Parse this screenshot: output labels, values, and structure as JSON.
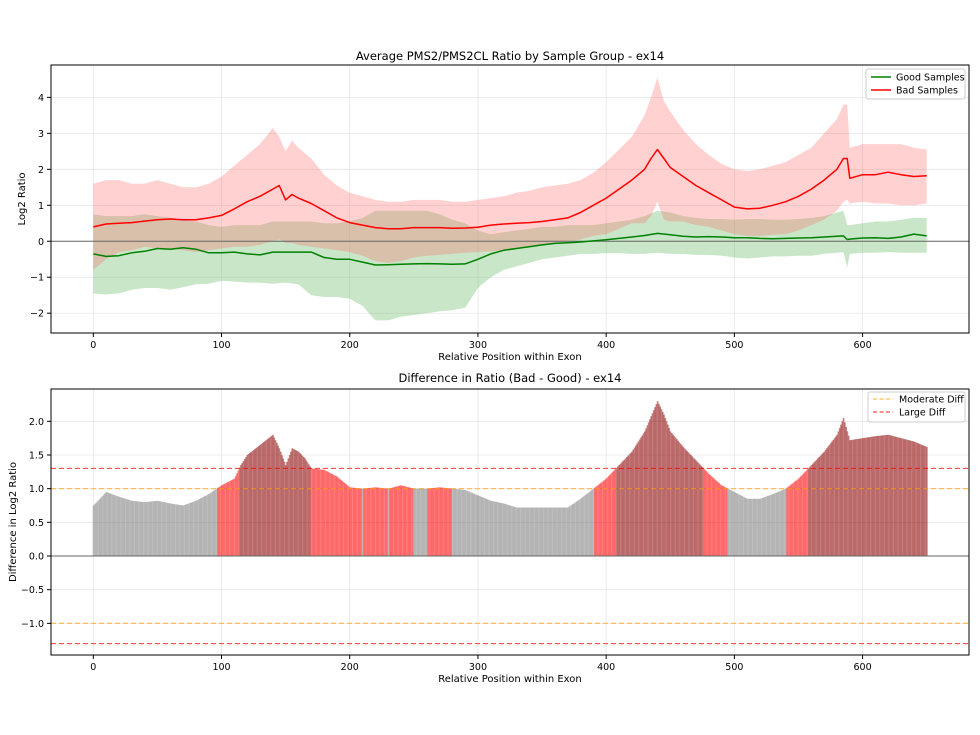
{
  "chart_data": [
    {
      "type": "line",
      "title": "Average PMS2/PMS2CL Ratio by Sample Group - ex14",
      "xlabel": "Relative Position within Exon",
      "ylabel": "Log2 Ratio",
      "xlim": [
        -33,
        683
      ],
      "ylim": [
        -2.55,
        4.9
      ],
      "xticks": [
        0,
        100,
        200,
        300,
        400,
        500,
        600
      ],
      "yticks": [
        -2,
        -1,
        0,
        1,
        2,
        3,
        4
      ],
      "grid": true,
      "legend_position": "top-right",
      "reference_line": 0,
      "series": [
        {
          "name": "Good Samples",
          "color": "#008000",
          "band_color": "#4daf4a",
          "x": [
            0,
            10,
            20,
            30,
            40,
            50,
            60,
            70,
            80,
            90,
            100,
            110,
            120,
            130,
            140,
            150,
            160,
            170,
            180,
            190,
            200,
            210,
            220,
            230,
            240,
            250,
            260,
            270,
            280,
            290,
            300,
            310,
            320,
            330,
            340,
            350,
            360,
            370,
            380,
            390,
            400,
            410,
            420,
            430,
            440,
            450,
            460,
            470,
            480,
            490,
            500,
            510,
            520,
            530,
            540,
            550,
            560,
            570,
            580,
            585,
            588,
            590,
            600,
            610,
            620,
            630,
            640,
            650
          ],
          "mean": [
            -0.35,
            -0.42,
            -0.4,
            -0.32,
            -0.28,
            -0.2,
            -0.22,
            -0.18,
            -0.22,
            -0.32,
            -0.32,
            -0.3,
            -0.35,
            -0.38,
            -0.3,
            -0.3,
            -0.3,
            -0.3,
            -0.45,
            -0.5,
            -0.5,
            -0.58,
            -0.66,
            -0.65,
            -0.64,
            -0.63,
            -0.62,
            -0.63,
            -0.64,
            -0.63,
            -0.5,
            -0.35,
            -0.25,
            -0.2,
            -0.15,
            -0.1,
            -0.06,
            -0.04,
            -0.02,
            0.01,
            0.04,
            0.08,
            0.12,
            0.16,
            0.22,
            0.18,
            0.14,
            0.12,
            0.13,
            0.12,
            0.1,
            0.1,
            0.08,
            0.07,
            0.08,
            0.09,
            0.1,
            0.12,
            0.14,
            0.15,
            0.05,
            0.06,
            0.09,
            0.1,
            0.08,
            0.12,
            0.2,
            0.15
          ],
          "lower": [
            -1.45,
            -1.48,
            -1.45,
            -1.35,
            -1.3,
            -1.3,
            -1.35,
            -1.28,
            -1.2,
            -1.18,
            -1.1,
            -1.12,
            -1.15,
            -1.15,
            -1.18,
            -1.15,
            -1.2,
            -1.5,
            -1.55,
            -1.55,
            -1.6,
            -1.8,
            -2.2,
            -2.2,
            -2.1,
            -2.05,
            -2.0,
            -1.95,
            -1.92,
            -1.85,
            -1.3,
            -1.0,
            -0.8,
            -0.7,
            -0.6,
            -0.5,
            -0.45,
            -0.4,
            -0.35,
            -0.35,
            -0.33,
            -0.33,
            -0.35,
            -0.35,
            -0.32,
            -0.35,
            -0.35,
            -0.38,
            -0.38,
            -0.4,
            -0.45,
            -0.48,
            -0.45,
            -0.42,
            -0.42,
            -0.4,
            -0.4,
            -0.35,
            -0.32,
            -0.3,
            -0.72,
            -0.35,
            -0.32,
            -0.32,
            -0.3,
            -0.32,
            -0.32,
            -0.32
          ],
          "upper": [
            0.75,
            0.7,
            0.7,
            0.7,
            0.75,
            0.7,
            0.65,
            0.6,
            0.55,
            0.45,
            0.4,
            0.45,
            0.45,
            0.45,
            0.55,
            0.55,
            0.55,
            0.55,
            0.5,
            0.5,
            0.55,
            0.65,
            0.85,
            0.85,
            0.85,
            0.85,
            0.85,
            0.75,
            0.6,
            0.5,
            0.3,
            0.2,
            0.25,
            0.3,
            0.35,
            0.4,
            0.4,
            0.45,
            0.45,
            0.45,
            0.5,
            0.55,
            0.6,
            0.7,
            0.85,
            0.8,
            0.7,
            0.65,
            0.62,
            0.62,
            0.6,
            0.62,
            0.62,
            0.6,
            0.6,
            0.62,
            0.65,
            0.7,
            0.8,
            0.85,
            0.45,
            0.45,
            0.5,
            0.55,
            0.55,
            0.6,
            0.65,
            0.65
          ]
        },
        {
          "name": "Bad Samples",
          "color": "#ff0000",
          "band_color": "#ff6666",
          "x": [
            0,
            10,
            20,
            30,
            40,
            50,
            60,
            70,
            80,
            90,
            100,
            110,
            120,
            130,
            140,
            145,
            150,
            155,
            160,
            170,
            180,
            190,
            200,
            210,
            220,
            230,
            240,
            250,
            260,
            270,
            280,
            290,
            300,
            310,
            320,
            330,
            340,
            350,
            360,
            370,
            380,
            390,
            400,
            410,
            420,
            430,
            435,
            440,
            445,
            450,
            460,
            470,
            480,
            490,
            500,
            510,
            520,
            530,
            540,
            550,
            560,
            570,
            580,
            585,
            588,
            590,
            600,
            610,
            620,
            630,
            640,
            650
          ],
          "mean": [
            0.4,
            0.48,
            0.5,
            0.52,
            0.56,
            0.6,
            0.62,
            0.6,
            0.6,
            0.65,
            0.72,
            0.9,
            1.1,
            1.25,
            1.45,
            1.55,
            1.15,
            1.3,
            1.2,
            1.05,
            0.85,
            0.65,
            0.52,
            0.45,
            0.38,
            0.35,
            0.35,
            0.38,
            0.38,
            0.38,
            0.36,
            0.37,
            0.39,
            0.45,
            0.48,
            0.5,
            0.52,
            0.55,
            0.6,
            0.65,
            0.8,
            1.0,
            1.2,
            1.45,
            1.7,
            2.0,
            2.3,
            2.55,
            2.3,
            2.05,
            1.8,
            1.55,
            1.35,
            1.15,
            0.95,
            0.9,
            0.92,
            1.0,
            1.1,
            1.25,
            1.45,
            1.7,
            2.0,
            2.3,
            2.3,
            1.75,
            1.85,
            1.85,
            1.92,
            1.85,
            1.8,
            1.82
          ],
          "lower": [
            -0.8,
            -0.5,
            -0.3,
            -0.25,
            -0.15,
            -0.2,
            -0.2,
            -0.25,
            -0.3,
            -0.25,
            -0.2,
            -0.15,
            -0.15,
            -0.1,
            0.0,
            0.05,
            -0.05,
            -0.05,
            -0.1,
            -0.15,
            -0.2,
            -0.25,
            -0.3,
            -0.4,
            -0.55,
            -0.6,
            -0.55,
            -0.45,
            -0.4,
            -0.38,
            -0.35,
            -0.32,
            -0.3,
            -0.28,
            -0.25,
            -0.2,
            -0.15,
            -0.1,
            -0.05,
            0.0,
            0.05,
            0.15,
            0.2,
            0.35,
            0.5,
            0.5,
            0.7,
            1.1,
            0.6,
            0.55,
            0.55,
            0.45,
            0.4,
            0.3,
            0.2,
            0.15,
            0.15,
            0.18,
            0.2,
            0.3,
            0.45,
            0.6,
            0.85,
            1.1,
            1.15,
            1.05,
            1.1,
            1.05,
            1.05,
            1.0,
            1.0,
            1.05
          ],
          "upper": [
            1.6,
            1.7,
            1.7,
            1.6,
            1.6,
            1.7,
            1.6,
            1.5,
            1.5,
            1.6,
            1.8,
            2.1,
            2.4,
            2.7,
            3.15,
            2.9,
            2.5,
            2.8,
            2.6,
            2.3,
            1.85,
            1.55,
            1.35,
            1.25,
            1.15,
            1.1,
            1.1,
            1.15,
            1.15,
            1.15,
            1.1,
            1.1,
            1.15,
            1.2,
            1.25,
            1.35,
            1.4,
            1.5,
            1.55,
            1.6,
            1.7,
            1.9,
            2.2,
            2.55,
            2.9,
            3.5,
            4.0,
            4.55,
            3.9,
            3.6,
            3.1,
            2.7,
            2.4,
            2.15,
            2.0,
            1.95,
            2.0,
            2.1,
            2.2,
            2.4,
            2.6,
            3.0,
            3.4,
            3.8,
            3.8,
            2.6,
            2.7,
            2.7,
            2.7,
            2.7,
            2.6,
            2.55
          ]
        }
      ]
    },
    {
      "type": "bar",
      "title": "Difference in Ratio (Bad - Good) - ex14",
      "xlabel": "Relative Position within Exon",
      "ylabel": "Difference in Log2 Ratio",
      "xlim": [
        -33,
        683
      ],
      "ylim": [
        -1.47,
        2.48
      ],
      "xticks": [
        0,
        100,
        200,
        300,
        400,
        500,
        600
      ],
      "yticks": [
        -1.0,
        -0.5,
        0.0,
        0.5,
        1.0,
        1.5,
        2.0
      ],
      "grid": true,
      "legend_position": "top-right",
      "reference_line": 0,
      "thresholds": [
        {
          "name": "Moderate Diff",
          "values": [
            1.0,
            -1.0
          ],
          "color": "#ffa500"
        },
        {
          "name": "Large Diff",
          "values": [
            1.3,
            -1.3
          ],
          "color": "#ff0000"
        }
      ],
      "bar_colors": {
        "large": "#8b0000",
        "moderate": "#ff0000",
        "small": "#808080"
      },
      "x": [
        0,
        10,
        20,
        30,
        40,
        50,
        60,
        70,
        80,
        90,
        100,
        110,
        115,
        120,
        130,
        140,
        145,
        150,
        155,
        160,
        165,
        170,
        180,
        190,
        200,
        210,
        220,
        230,
        240,
        250,
        260,
        270,
        280,
        290,
        300,
        310,
        320,
        330,
        340,
        350,
        360,
        370,
        380,
        390,
        400,
        410,
        420,
        430,
        440,
        445,
        450,
        460,
        470,
        480,
        490,
        500,
        510,
        520,
        530,
        540,
        550,
        560,
        570,
        580,
        585,
        590,
        600,
        610,
        620,
        630,
        640,
        650
      ],
      "values": [
        0.75,
        0.95,
        0.88,
        0.82,
        0.8,
        0.82,
        0.78,
        0.75,
        0.82,
        0.92,
        1.05,
        1.15,
        1.35,
        1.5,
        1.65,
        1.8,
        1.6,
        1.35,
        1.6,
        1.55,
        1.45,
        1.3,
        1.28,
        1.18,
        1.02,
        1.0,
        1.02,
        1.0,
        1.05,
        1.0,
        1.0,
        1.02,
        1.0,
        0.98,
        0.9,
        0.82,
        0.78,
        0.72,
        0.72,
        0.72,
        0.72,
        0.72,
        0.85,
        1.0,
        1.15,
        1.35,
        1.55,
        1.85,
        2.3,
        2.1,
        1.85,
        1.62,
        1.42,
        1.22,
        1.05,
        0.95,
        0.85,
        0.85,
        0.92,
        1.0,
        1.15,
        1.35,
        1.55,
        1.8,
        2.05,
        1.72,
        1.75,
        1.78,
        1.8,
        1.75,
        1.7,
        1.62
      ]
    }
  ]
}
